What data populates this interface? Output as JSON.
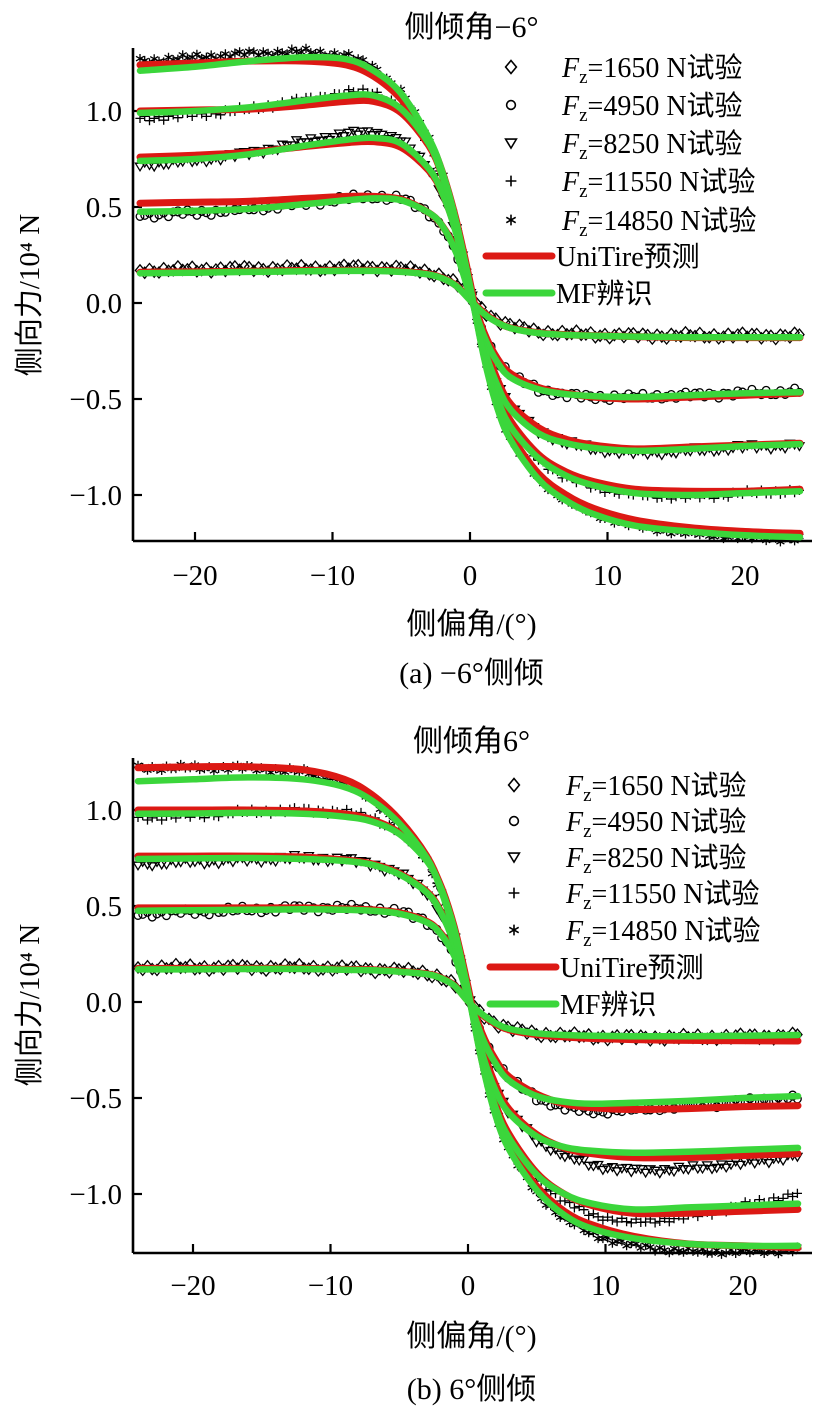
{
  "figure": {
    "background": "#ffffff",
    "unit": "10⁴ N",
    "captions": {
      "a": "(a) −6°侧倾",
      "b": "(b) 6°侧倾"
    },
    "colors": {
      "unitire_red": "#dc1914",
      "mf_green": "#3bd63b",
      "marker_black": "#000000",
      "axis_black": "#000000"
    }
  },
  "chart_data": [
    {
      "type": "line",
      "title": "侧倾角−6°",
      "xlabel": "侧偏角/(°)",
      "ylabel": "侧向力/10⁴ N",
      "xlim": [
        -24,
        24
      ],
      "ylim": [
        -1.24,
        1.33
      ],
      "grid": false,
      "legend_position": "upper right",
      "xticks": [
        -20,
        -10,
        0,
        10,
        20
      ],
      "xtick_labels": [
        "−20",
        "−10",
        "0",
        "10",
        "20"
      ],
      "yticks": [
        1.0,
        0.5,
        0.0,
        -0.5,
        -1.0
      ],
      "ytick_labels": [
        "1.0",
        "0.5",
        "0.0",
        "−0.5",
        "−1.0"
      ],
      "legend": [
        {
          "type": "marker",
          "marker": "diamond",
          "f": "F",
          "sub": "z",
          "rest": "=1650 N试验"
        },
        {
          "type": "marker",
          "marker": "circle",
          "f": "F",
          "sub": "z",
          "rest": "=4950 N试验"
        },
        {
          "type": "marker",
          "marker": "triangle-down",
          "f": "F",
          "sub": "z",
          "rest": "=8250 N试验"
        },
        {
          "type": "marker",
          "marker": "plus",
          "f": "F",
          "sub": "z",
          "rest": "=11550 N试验"
        },
        {
          "type": "marker",
          "marker": "asterisk",
          "f": "F",
          "sub": "z",
          "rest": "=14850 N试验"
        },
        {
          "type": "line",
          "color": "unitire_red",
          "label": "UniTire预测"
        },
        {
          "type": "line",
          "color": "mf_green",
          "label": "MF辨识"
        }
      ],
      "x": [
        -24,
        -20,
        -16,
        -12,
        -9,
        -7,
        -5,
        -3,
        -2,
        -1,
        0,
        1,
        2,
        3,
        5,
        7,
        9,
        12,
        16,
        20,
        24
      ],
      "series": [
        {
          "fz": 1650,
          "model": "experiment",
          "marker": "diamond",
          "y": [
            0.17,
            0.175,
            0.18,
            0.18,
            0.185,
            0.185,
            0.18,
            0.16,
            0.14,
            0.1,
            0.03,
            -0.04,
            -0.09,
            -0.12,
            -0.15,
            -0.16,
            -0.165,
            -0.17,
            -0.17,
            -0.17,
            -0.17
          ]
        },
        {
          "fz": 1650,
          "model": "UniTire",
          "y": [
            0.16,
            0.163,
            0.165,
            0.17,
            0.17,
            0.17,
            0.165,
            0.15,
            0.13,
            0.09,
            0.02,
            -0.05,
            -0.1,
            -0.13,
            -0.155,
            -0.165,
            -0.17,
            -0.175,
            -0.18,
            -0.18,
            -0.18
          ]
        },
        {
          "fz": 1650,
          "model": "MF",
          "y": [
            0.155,
            0.158,
            0.162,
            0.165,
            0.167,
            0.167,
            0.162,
            0.148,
            0.128,
            0.088,
            0.015,
            -0.055,
            -0.102,
            -0.132,
            -0.157,
            -0.166,
            -0.171,
            -0.175,
            -0.178,
            -0.178,
            -0.178
          ]
        },
        {
          "fz": 4950,
          "model": "experiment",
          "marker": "circle",
          "y": [
            0.46,
            0.47,
            0.49,
            0.52,
            0.545,
            0.555,
            0.545,
            0.47,
            0.4,
            0.26,
            0.05,
            -0.16,
            -0.3,
            -0.38,
            -0.45,
            -0.48,
            -0.49,
            -0.49,
            -0.48,
            -0.47,
            -0.46
          ]
        },
        {
          "fz": 4950,
          "model": "UniTire",
          "y": [
            0.52,
            0.525,
            0.53,
            0.545,
            0.555,
            0.555,
            0.54,
            0.47,
            0.4,
            0.27,
            0.06,
            -0.15,
            -0.29,
            -0.37,
            -0.44,
            -0.47,
            -0.49,
            -0.5,
            -0.49,
            -0.48,
            -0.47
          ]
        },
        {
          "fz": 4950,
          "model": "MF",
          "y": [
            0.475,
            0.48,
            0.49,
            0.515,
            0.535,
            0.545,
            0.535,
            0.47,
            0.4,
            0.26,
            0.04,
            -0.17,
            -0.31,
            -0.39,
            -0.45,
            -0.475,
            -0.485,
            -0.49,
            -0.48,
            -0.47,
            -0.465
          ]
        },
        {
          "fz": 8250,
          "model": "experiment",
          "marker": "triangle-down",
          "y": [
            0.72,
            0.74,
            0.78,
            0.84,
            0.88,
            0.89,
            0.85,
            0.7,
            0.57,
            0.36,
            0.08,
            -0.22,
            -0.42,
            -0.55,
            -0.67,
            -0.73,
            -0.76,
            -0.78,
            -0.77,
            -0.75,
            -0.74
          ]
        },
        {
          "fz": 8250,
          "model": "UniTire",
          "y": [
            0.76,
            0.77,
            0.785,
            0.815,
            0.835,
            0.84,
            0.81,
            0.69,
            0.57,
            0.37,
            0.09,
            -0.2,
            -0.4,
            -0.53,
            -0.65,
            -0.71,
            -0.74,
            -0.76,
            -0.75,
            -0.74,
            -0.73
          ]
        },
        {
          "fz": 8250,
          "model": "MF",
          "y": [
            0.74,
            0.75,
            0.775,
            0.82,
            0.85,
            0.86,
            0.83,
            0.7,
            0.57,
            0.36,
            0.07,
            -0.23,
            -0.43,
            -0.56,
            -0.68,
            -0.73,
            -0.755,
            -0.77,
            -0.76,
            -0.745,
            -0.735
          ]
        },
        {
          "fz": 11550,
          "model": "experiment",
          "marker": "plus",
          "y": [
            0.96,
            0.98,
            1.01,
            1.06,
            1.095,
            1.1,
            1.02,
            0.83,
            0.66,
            0.4,
            0.08,
            -0.26,
            -0.5,
            -0.65,
            -0.82,
            -0.91,
            -0.96,
            -1.0,
            -1.01,
            -0.99,
            -0.98
          ]
        },
        {
          "fz": 11550,
          "model": "UniTire",
          "y": [
            1.0,
            1.005,
            1.01,
            1.03,
            1.05,
            1.05,
            0.99,
            0.82,
            0.66,
            0.42,
            0.1,
            -0.24,
            -0.47,
            -0.62,
            -0.79,
            -0.88,
            -0.93,
            -0.97,
            -0.98,
            -0.98,
            -0.97
          ]
        },
        {
          "fz": 11550,
          "model": "MF",
          "y": [
            0.99,
            1.0,
            1.02,
            1.055,
            1.08,
            1.08,
            1.01,
            0.83,
            0.66,
            0.41,
            0.08,
            -0.27,
            -0.5,
            -0.65,
            -0.81,
            -0.9,
            -0.95,
            -0.99,
            -1.0,
            -0.99,
            -0.98
          ]
        },
        {
          "fz": 14850,
          "model": "experiment",
          "marker": "asterisk",
          "y": [
            1.26,
            1.28,
            1.3,
            1.31,
            1.29,
            1.23,
            1.1,
            0.86,
            0.68,
            0.42,
            0.1,
            -0.28,
            -0.55,
            -0.72,
            -0.92,
            -1.03,
            -1.1,
            -1.16,
            -1.2,
            -1.22,
            -1.23
          ]
        },
        {
          "fz": 14850,
          "model": "UniTire",
          "y": [
            1.24,
            1.25,
            1.26,
            1.26,
            1.24,
            1.18,
            1.06,
            0.85,
            0.68,
            0.43,
            0.11,
            -0.26,
            -0.52,
            -0.69,
            -0.89,
            -1.0,
            -1.07,
            -1.13,
            -1.17,
            -1.19,
            -1.2
          ]
        },
        {
          "fz": 14850,
          "model": "MF",
          "y": [
            1.21,
            1.23,
            1.26,
            1.28,
            1.27,
            1.21,
            1.09,
            0.86,
            0.68,
            0.42,
            0.09,
            -0.28,
            -0.55,
            -0.72,
            -0.92,
            -1.03,
            -1.1,
            -1.16,
            -1.19,
            -1.21,
            -1.22
          ]
        }
      ]
    },
    {
      "type": "line",
      "title": "侧倾角6°",
      "xlabel": "侧偏角/(°)",
      "ylabel": "侧向力/10⁴ N",
      "xlim": [
        -24,
        24
      ],
      "ylim": [
        -1.31,
        1.27
      ],
      "grid": false,
      "legend_position": "upper right",
      "xticks": [
        -20,
        -10,
        0,
        10,
        20
      ],
      "xtick_labels": [
        "−20",
        "−10",
        "0",
        "10",
        "20"
      ],
      "yticks": [
        1.0,
        0.5,
        0.0,
        -0.5,
        -1.0
      ],
      "ytick_labels": [
        "1.0",
        "0.5",
        "0.0",
        "−0.5",
        "−1.0"
      ],
      "legend": [
        {
          "type": "marker",
          "marker": "diamond",
          "f": "F",
          "sub": "z",
          "rest": "=1650 N试验"
        },
        {
          "type": "marker",
          "marker": "circle",
          "f": "F",
          "sub": "z",
          "rest": "=4950 N试验"
        },
        {
          "type": "marker",
          "marker": "triangle-down",
          "f": "F",
          "sub": "z",
          "rest": "=8250 N试验"
        },
        {
          "type": "marker",
          "marker": "plus",
          "f": "F",
          "sub": "z",
          "rest": "=11550 N试验"
        },
        {
          "type": "marker",
          "marker": "asterisk",
          "f": "F",
          "sub": "z",
          "rest": "=14850 N试验"
        },
        {
          "type": "line",
          "color": "unitire_red",
          "label": "UniTire预测"
        },
        {
          "type": "line",
          "color": "mf_green",
          "label": "MF辨识"
        }
      ],
      "x": [
        -24,
        -20,
        -16,
        -12,
        -9,
        -7,
        -5,
        -3,
        -2,
        -1,
        0,
        1,
        2,
        3,
        5,
        7,
        9,
        12,
        16,
        20,
        24
      ],
      "series": [
        {
          "fz": 1650,
          "model": "experiment",
          "marker": "diamond",
          "y": [
            0.18,
            0.18,
            0.18,
            0.18,
            0.175,
            0.17,
            0.165,
            0.15,
            0.13,
            0.09,
            0.01,
            -0.06,
            -0.11,
            -0.14,
            -0.165,
            -0.175,
            -0.18,
            -0.185,
            -0.185,
            -0.18,
            -0.175
          ]
        },
        {
          "fz": 1650,
          "model": "UniTire",
          "y": [
            0.175,
            0.175,
            0.175,
            0.175,
            0.17,
            0.168,
            0.16,
            0.147,
            0.127,
            0.087,
            0.005,
            -0.065,
            -0.115,
            -0.145,
            -0.17,
            -0.182,
            -0.19,
            -0.196,
            -0.2,
            -0.202,
            -0.203
          ]
        },
        {
          "fz": 1650,
          "model": "MF",
          "y": [
            0.17,
            0.17,
            0.172,
            0.172,
            0.168,
            0.165,
            0.158,
            0.145,
            0.125,
            0.085,
            0.003,
            -0.062,
            -0.11,
            -0.14,
            -0.163,
            -0.172,
            -0.176,
            -0.178,
            -0.178,
            -0.176,
            -0.172
          ]
        },
        {
          "fz": 4950,
          "model": "experiment",
          "marker": "circle",
          "y": [
            0.46,
            0.47,
            0.48,
            0.49,
            0.49,
            0.485,
            0.47,
            0.42,
            0.36,
            0.24,
            0.04,
            -0.17,
            -0.31,
            -0.4,
            -0.5,
            -0.55,
            -0.57,
            -0.56,
            -0.54,
            -0.52,
            -0.5
          ]
        },
        {
          "fz": 4950,
          "model": "UniTire",
          "y": [
            0.49,
            0.49,
            0.49,
            0.49,
            0.485,
            0.48,
            0.465,
            0.42,
            0.36,
            0.25,
            0.05,
            -0.16,
            -0.3,
            -0.39,
            -0.48,
            -0.53,
            -0.55,
            -0.56,
            -0.555,
            -0.545,
            -0.54
          ]
        },
        {
          "fz": 4950,
          "model": "MF",
          "y": [
            0.475,
            0.478,
            0.48,
            0.483,
            0.48,
            0.475,
            0.46,
            0.415,
            0.355,
            0.24,
            0.03,
            -0.18,
            -0.32,
            -0.41,
            -0.49,
            -0.52,
            -0.53,
            -0.525,
            -0.515,
            -0.5,
            -0.49
          ]
        },
        {
          "fz": 8250,
          "model": "experiment",
          "marker": "triangle-down",
          "y": [
            0.72,
            0.73,
            0.74,
            0.75,
            0.74,
            0.72,
            0.67,
            0.57,
            0.47,
            0.3,
            0.05,
            -0.25,
            -0.45,
            -0.58,
            -0.72,
            -0.8,
            -0.85,
            -0.88,
            -0.87,
            -0.84,
            -0.8
          ]
        },
        {
          "fz": 8250,
          "model": "UniTire",
          "y": [
            0.76,
            0.76,
            0.76,
            0.755,
            0.74,
            0.72,
            0.67,
            0.575,
            0.475,
            0.31,
            0.06,
            -0.23,
            -0.43,
            -0.56,
            -0.69,
            -0.76,
            -0.79,
            -0.81,
            -0.81,
            -0.8,
            -0.79
          ]
        },
        {
          "fz": 8250,
          "model": "MF",
          "y": [
            0.745,
            0.748,
            0.75,
            0.745,
            0.735,
            0.715,
            0.665,
            0.57,
            0.47,
            0.3,
            0.04,
            -0.26,
            -0.46,
            -0.58,
            -0.7,
            -0.755,
            -0.775,
            -0.785,
            -0.78,
            -0.77,
            -0.76
          ]
        },
        {
          "fz": 11550,
          "model": "experiment",
          "marker": "plus",
          "y": [
            0.96,
            0.97,
            0.99,
            1.0,
            0.99,
            0.96,
            0.89,
            0.74,
            0.6,
            0.38,
            0.06,
            -0.3,
            -0.55,
            -0.72,
            -0.92,
            -1.04,
            -1.11,
            -1.15,
            -1.12,
            -1.06,
            -1.0
          ]
        },
        {
          "fz": 11550,
          "model": "UniTire",
          "y": [
            1.0,
            1.0,
            1.0,
            0.995,
            0.98,
            0.95,
            0.88,
            0.74,
            0.61,
            0.39,
            0.08,
            -0.28,
            -0.53,
            -0.69,
            -0.89,
            -1.0,
            -1.06,
            -1.1,
            -1.1,
            -1.09,
            -1.08
          ]
        },
        {
          "fz": 11550,
          "model": "MF",
          "y": [
            0.98,
            0.982,
            0.985,
            0.98,
            0.965,
            0.94,
            0.875,
            0.735,
            0.6,
            0.38,
            0.06,
            -0.3,
            -0.55,
            -0.71,
            -0.9,
            -1.0,
            -1.05,
            -1.08,
            -1.07,
            -1.06,
            -1.05
          ]
        },
        {
          "fz": 14850,
          "model": "experiment",
          "marker": "asterisk",
          "y": [
            1.22,
            1.22,
            1.22,
            1.2,
            1.14,
            1.06,
            0.93,
            0.74,
            0.58,
            0.35,
            0.05,
            -0.32,
            -0.6,
            -0.78,
            -1.0,
            -1.13,
            -1.21,
            -1.27,
            -1.3,
            -1.3,
            -1.29
          ]
        },
        {
          "fz": 14850,
          "model": "UniTire",
          "y": [
            1.22,
            1.225,
            1.225,
            1.21,
            1.16,
            1.08,
            0.95,
            0.76,
            0.6,
            0.37,
            0.07,
            -0.3,
            -0.57,
            -0.75,
            -0.96,
            -1.09,
            -1.16,
            -1.22,
            -1.26,
            -1.27,
            -1.28
          ]
        },
        {
          "fz": 14850,
          "model": "MF",
          "y": [
            1.15,
            1.16,
            1.17,
            1.16,
            1.12,
            1.05,
            0.93,
            0.75,
            0.59,
            0.36,
            0.05,
            -0.31,
            -0.59,
            -0.77,
            -0.98,
            -1.11,
            -1.18,
            -1.23,
            -1.26,
            -1.27,
            -1.27
          ]
        }
      ]
    }
  ]
}
